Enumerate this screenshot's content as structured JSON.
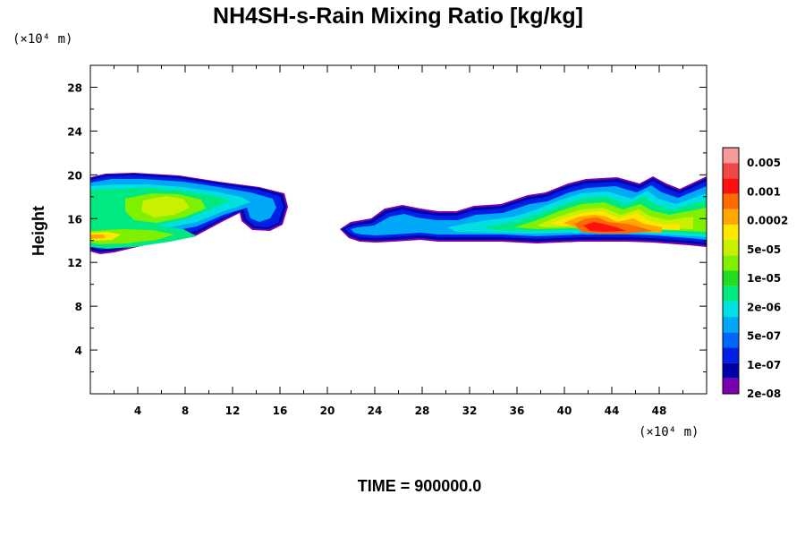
{
  "chart_data": {
    "type": "heatmap",
    "title": "NH4SH-s-Rain Mixing Ratio [kg/kg]",
    "ylabel": "Height",
    "x_unit": "(×10⁴ m)",
    "y_unit": "(×10⁴ m)",
    "xlim": [
      0,
      52
    ],
    "ylim": [
      0,
      30
    ],
    "x_ticks": [
      "4",
      "8",
      "12",
      "16",
      "20",
      "24",
      "28",
      "32",
      "36",
      "40",
      "44",
      "48"
    ],
    "y_ticks": [
      "4",
      "8",
      "12",
      "16",
      "20",
      "24",
      "28"
    ],
    "colorbar_labels": [
      "0.005",
      "0.001",
      "0.0002",
      "5e-05",
      "1e-05",
      "2e-06",
      "5e-07",
      "1e-07",
      "2e-08"
    ],
    "colorbar_colors": [
      "#f79a9a",
      "#f04848",
      "#ff1010",
      "#ff6a00",
      "#ffa800",
      "#ffe800",
      "#c8f000",
      "#7ef000",
      "#22dc22",
      "#00e880",
      "#00e0e0",
      "#00a8f8",
      "#0068f8",
      "#0020e8",
      "#0000a8",
      "#7a00b0"
    ],
    "time_label": "TIME = 900000.0"
  }
}
